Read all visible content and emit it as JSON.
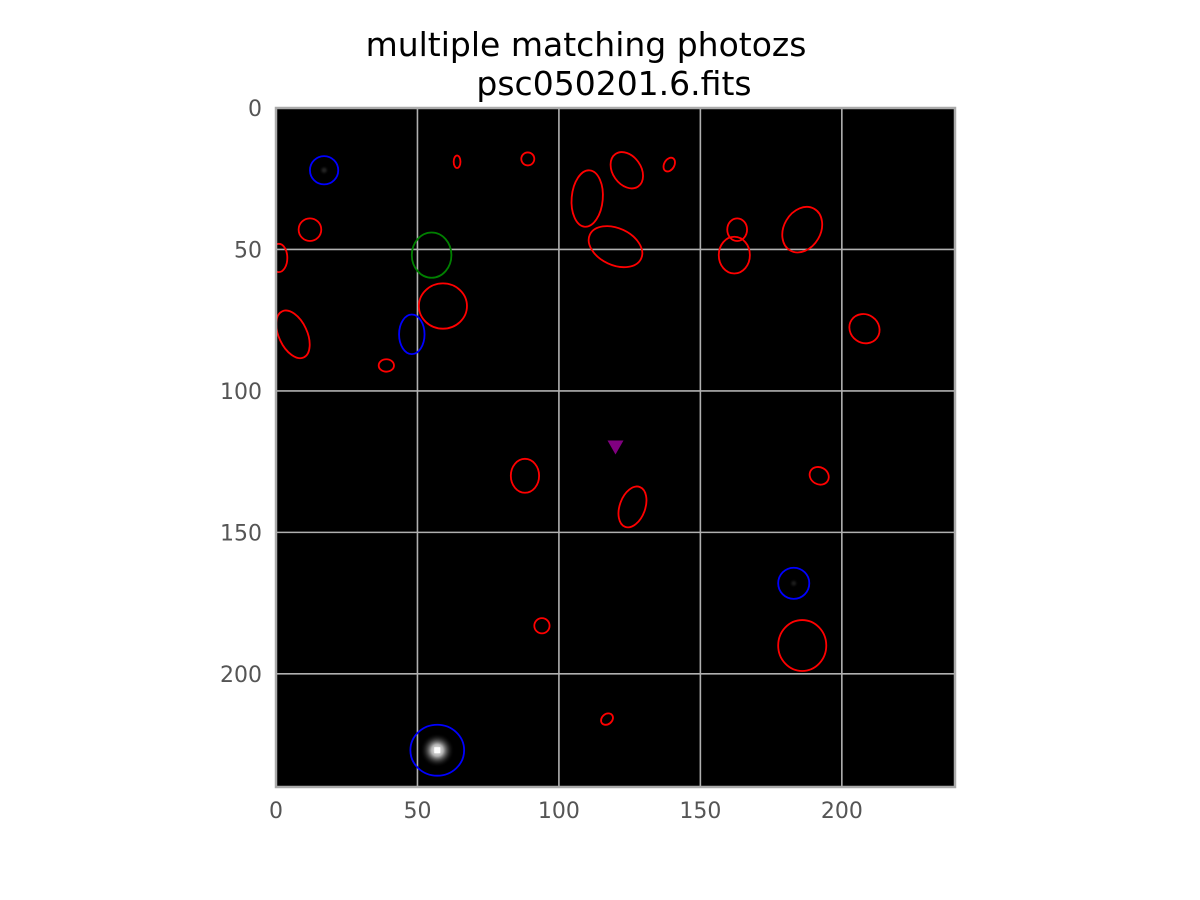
{
  "chart_data": {
    "type": "scatter",
    "title": "multiple matching photozs",
    "subtitle": "psc050201.6.fits",
    "xlabel": "",
    "ylabel": "",
    "xlim": [
      0,
      240
    ],
    "ylim": [
      240,
      0
    ],
    "y_inverted": true,
    "grid": true,
    "legend": "none",
    "x_ticks": [
      0,
      50,
      100,
      150,
      200
    ],
    "y_ticks": [
      0,
      50,
      100,
      150,
      200
    ],
    "colors": {
      "background": "#000000",
      "grid": "#b0b0b0",
      "spine": "#aaaaaa",
      "red": "#ff0000",
      "blue": "#0000ff",
      "green": "#008000",
      "marker": "#800080"
    },
    "ellipses": [
      {
        "group": "blue",
        "x": 17,
        "y": 22,
        "rx": 5,
        "ry": 5,
        "angle": 0
      },
      {
        "group": "blue",
        "x": 48,
        "y": 80,
        "rx": 4.5,
        "ry": 7,
        "angle": 0
      },
      {
        "group": "blue",
        "x": 183,
        "y": 168,
        "rx": 5.5,
        "ry": 5.5,
        "angle": 0
      },
      {
        "group": "blue",
        "x": 57,
        "y": 227,
        "rx": 9.5,
        "ry": 9,
        "angle": 0
      },
      {
        "group": "green",
        "x": 55,
        "y": 52,
        "rx": 7,
        "ry": 8,
        "angle": 0
      },
      {
        "group": "red",
        "x": 64,
        "y": 19,
        "rx": 1.2,
        "ry": 2.2,
        "angle": 0
      },
      {
        "group": "red",
        "x": 89,
        "y": 18,
        "rx": 2.3,
        "ry": 2.3,
        "angle": 0
      },
      {
        "group": "red",
        "x": 124,
        "y": 22,
        "rx": 5,
        "ry": 7,
        "angle": -35
      },
      {
        "group": "red",
        "x": 139,
        "y": 20,
        "rx": 1.8,
        "ry": 2.6,
        "angle": 30
      },
      {
        "group": "red",
        "x": 110,
        "y": 32,
        "rx": 5.5,
        "ry": 10,
        "angle": 5
      },
      {
        "group": "red",
        "x": 12,
        "y": 43,
        "rx": 4,
        "ry": 4,
        "angle": 0
      },
      {
        "group": "red",
        "x": 1,
        "y": 53,
        "rx": 3,
        "ry": 5,
        "angle": 0
      },
      {
        "group": "red",
        "x": 120,
        "y": 49,
        "rx": 10,
        "ry": 6.5,
        "angle": 25
      },
      {
        "group": "red",
        "x": 163,
        "y": 43,
        "rx": 3.5,
        "ry": 4,
        "angle": 0
      },
      {
        "group": "red",
        "x": 162,
        "y": 52,
        "rx": 5.5,
        "ry": 6.5,
        "angle": 0
      },
      {
        "group": "red",
        "x": 186,
        "y": 43,
        "rx": 6.5,
        "ry": 8.5,
        "angle": 30
      },
      {
        "group": "red",
        "x": 59,
        "y": 70,
        "rx": 8.5,
        "ry": 8,
        "angle": 0
      },
      {
        "group": "red",
        "x": 6,
        "y": 80,
        "rx": 5,
        "ry": 9,
        "angle": -25
      },
      {
        "group": "red",
        "x": 208,
        "y": 78,
        "rx": 5.5,
        "ry": 5,
        "angle": 35
      },
      {
        "group": "red",
        "x": 39,
        "y": 91,
        "rx": 2.7,
        "ry": 2.2,
        "angle": 0
      },
      {
        "group": "red",
        "x": 88,
        "y": 130,
        "rx": 5,
        "ry": 6,
        "angle": 0
      },
      {
        "group": "red",
        "x": 192,
        "y": 130,
        "rx": 3.5,
        "ry": 3,
        "angle": 30
      },
      {
        "group": "red",
        "x": 126,
        "y": 141,
        "rx": 4.5,
        "ry": 7.5,
        "angle": 20
      },
      {
        "group": "red",
        "x": 94,
        "y": 183,
        "rx": 2.7,
        "ry": 2.7,
        "angle": 0
      },
      {
        "group": "red",
        "x": 186,
        "y": 190,
        "rx": 8.5,
        "ry": 9,
        "angle": 0
      },
      {
        "group": "red",
        "x": 117,
        "y": 216,
        "rx": 2.3,
        "ry": 1.8,
        "angle": -40
      }
    ],
    "marker": {
      "x": 120,
      "y": 120,
      "shape": "triangle-down",
      "color": "#800080"
    },
    "point_sources": [
      {
        "x": 57,
        "y": 227,
        "brightness": 1.0
      },
      {
        "x": 17,
        "y": 22,
        "brightness": 0.15
      },
      {
        "x": 183,
        "y": 168,
        "brightness": 0.12
      }
    ]
  }
}
